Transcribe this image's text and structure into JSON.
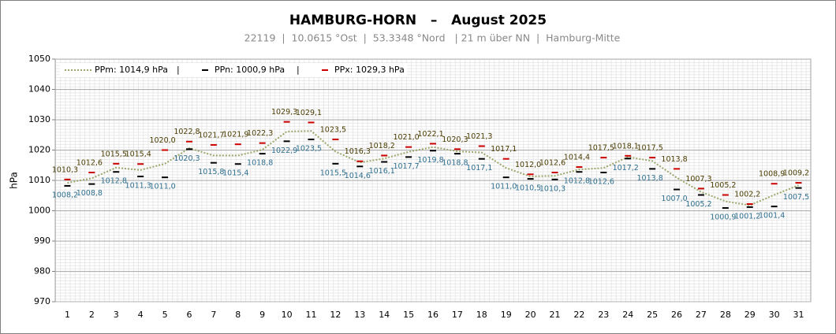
{
  "chart_data": {
    "type": "line",
    "title": "HAMBURG-HORN   –   August 2025",
    "subtitle": "22119  |  10.0615 °Ost  |  53.3348 °Nord   | 21 m über NN  |  Hamburg-Mitte",
    "y_label": "hPa",
    "categories": [
      "1",
      "2",
      "3",
      "4",
      "5",
      "6",
      "7",
      "8",
      "9",
      "10",
      "11",
      "12",
      "13",
      "14",
      "15",
      "16",
      "17",
      "18",
      "19",
      "20",
      "21",
      "22",
      "23",
      "24",
      "25",
      "26",
      "27",
      "28",
      "29",
      "30",
      "31"
    ],
    "ylim": [
      970,
      1050
    ],
    "yticks": [
      970,
      980,
      990,
      1000,
      1010,
      1020,
      1030,
      1040,
      1050
    ],
    "grid": true,
    "legend_position": "upper left",
    "legend_separator": "|",
    "series": [
      {
        "name": "PPm: 1014,9 hPa",
        "color": "#9aa86a",
        "mark": "line",
        "values": [
          1009.2,
          1010.7,
          1014.2,
          1013.4,
          1015.5,
          1020.6,
          1018.2,
          1018.2,
          1020.1,
          1026.1,
          1026.3,
          1019.5,
          1015.9,
          1017.2,
          1019.4,
          1021.0,
          1019.6,
          1019.2,
          1014.1,
          1011.3,
          1011.5,
          1013.6,
          1014.1,
          1017.7,
          1016.4,
          1010.9,
          1006.2,
          1003.1,
          1001.8,
          1005.2,
          1008.4
        ]
      },
      {
        "name": "PPn: 1000,9 hPa",
        "color": "#000000",
        "mark": "dash",
        "label_color": "#2f6f8f",
        "label_side": "below",
        "values": [
          1008.2,
          1008.8,
          1012.8,
          1011.3,
          1011.0,
          1020.3,
          1015.8,
          1015.4,
          1018.8,
          1022.9,
          1023.5,
          1015.5,
          1014.6,
          1016.1,
          1017.7,
          1019.8,
          1018.8,
          1017.1,
          1011.0,
          1010.5,
          1010.3,
          1012.8,
          1012.6,
          1017.2,
          1013.8,
          1007.0,
          1005.2,
          1000.9,
          1001.2,
          1001.4,
          1007.5
        ],
        "value_labels": [
          "1008,2",
          "1008,8",
          "1012,8",
          "1011,3",
          "1011,0",
          "1020,3",
          "1015,8",
          "1015,4",
          "1018,8",
          "1022,9",
          "1023,5",
          "1015,5",
          "1014,6",
          "1016,1",
          "1017,7",
          "1019,8",
          "1018,8",
          "1017,1",
          "1011,0",
          "1010,5",
          "1010,3",
          "1012,8",
          "1012,6",
          "1017,2",
          "1013,8",
          "1007,0",
          "1005,2",
          "1000,9",
          "1001,2",
          "1001,4",
          "1007,5"
        ]
      },
      {
        "name": "PPx: 1029,3 hPa",
        "color": "#cc0000",
        "mark": "dash",
        "label_color": "#4a3c00",
        "label_side": "above",
        "values": [
          1010.3,
          1012.6,
          1015.5,
          1015.4,
          1020.0,
          1022.8,
          1021.7,
          1021.9,
          1022.3,
          1029.3,
          1029.1,
          1023.5,
          1016.3,
          1018.2,
          1021.0,
          1022.1,
          1020.3,
          1021.3,
          1017.1,
          1012.0,
          1012.6,
          1014.4,
          1017.5,
          1018.1,
          1017.5,
          1013.8,
          1007.3,
          1005.2,
          1002.2,
          1008.9,
          1009.2
        ],
        "value_labels": [
          "1010,3",
          "1012,6",
          "1015,5",
          "1015,4",
          "1020,0",
          "1022,8",
          "1021,7",
          "1021,9",
          "1022,3",
          "1029,3",
          "1029,1",
          "1023,5",
          "1016,3",
          "1018,2",
          "1021,0",
          "1022,1",
          "1020,3",
          "1021,3",
          "1017,1",
          "1012,0",
          "1012,6",
          "1014,4",
          "1017,5",
          "1018,1",
          "1017,5",
          "1013,8",
          "1007,3",
          "1005,2",
          "1002,2",
          "1008,9",
          "1009,2"
        ]
      }
    ]
  }
}
